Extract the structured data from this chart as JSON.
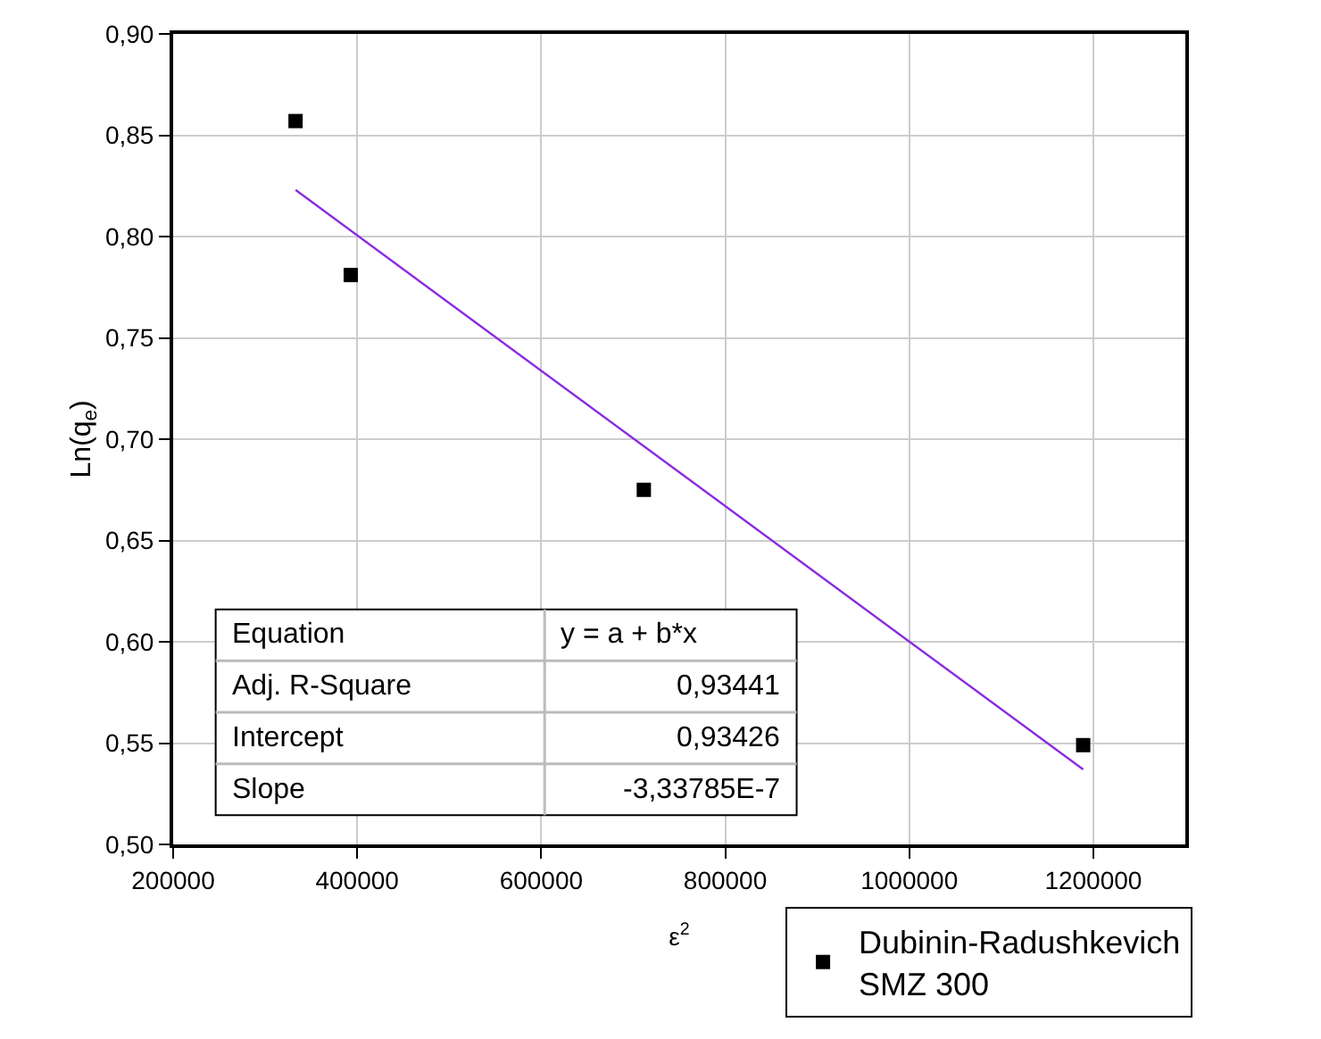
{
  "chart_data": {
    "type": "scatter",
    "xlabel": "ε$^{2}$",
    "ylabel": "Ln(q$_{e}$)",
    "xlim": [
      200000,
      1300000
    ],
    "xticks": [
      200000,
      400000,
      600000,
      800000,
      1000000,
      1200000
    ],
    "ylim": [
      0.5,
      0.9
    ],
    "yticks": [
      {
        "value": 0.5,
        "label": "0,50"
      },
      {
        "value": 0.55,
        "label": "0,55"
      },
      {
        "value": 0.6,
        "label": "0,60"
      },
      {
        "value": 0.65,
        "label": "0,65"
      },
      {
        "value": 0.7,
        "label": "0,70"
      },
      {
        "value": 0.75,
        "label": "0,75"
      },
      {
        "value": 0.8,
        "label": "0,80"
      },
      {
        "value": 0.85,
        "label": "0,85"
      },
      {
        "value": 0.9,
        "label": "0,90"
      }
    ],
    "grid": true,
    "legend": "bottom right",
    "series": [
      {
        "name": "Dubinin-Radushkevich\nSMZ 300",
        "color": "#000000",
        "marker": "square",
        "x": [
          333000,
          393000,
          711500,
          1189000
        ],
        "values": [
          0.857,
          0.781,
          0.675,
          0.549
        ]
      },
      {
        "type": "line",
        "color": "#8a2be2",
        "line_style": "solid",
        "marker": "none",
        "x": [
          333000,
          1189000
        ],
        "values": [
          0.823,
          0.537
        ]
      }
    ],
    "annotations": [
      "Equation",
      "y = a + b*x",
      "Adj. R-Square",
      "0,93441",
      "Intercept",
      "0,93426",
      "Slope",
      "-3,33785E-7"
    ]
  }
}
